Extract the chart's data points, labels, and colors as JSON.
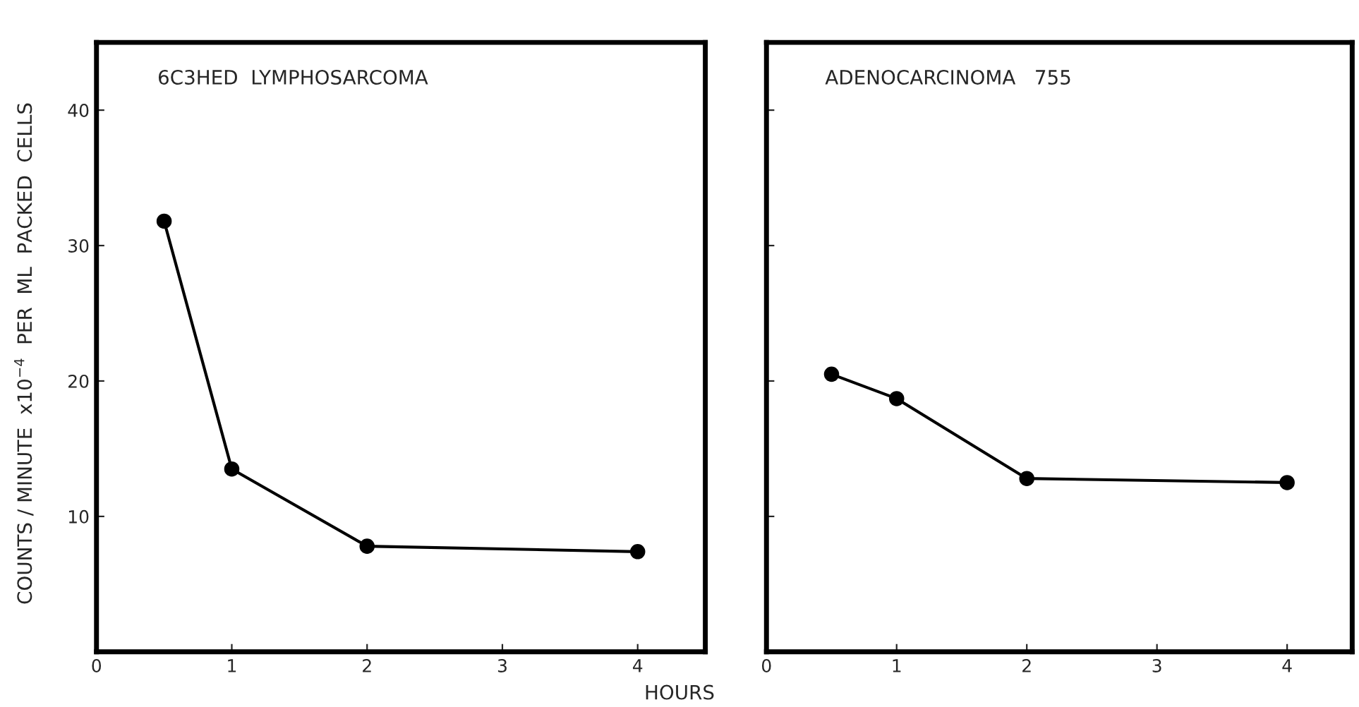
{
  "chart_data": [
    {
      "type": "line",
      "title": "6C3HED  LYMPHOSARCOMA",
      "xlabel": "HOURS",
      "ylabel": "COUNTS / MINUTE  x10$^{−4}$  PER  ML  PACKED  CELLS",
      "x": [
        0.5,
        1,
        2,
        4
      ],
      "series": [
        {
          "color": "#000000",
          "values": [
            31.8,
            13.5,
            7.8,
            7.4
          ]
        }
      ],
      "xlim": [
        0,
        4.5
      ],
      "ylim": [
        0,
        45
      ],
      "xticks": [
        0,
        1,
        2,
        3,
        4
      ],
      "yticks": [
        10,
        20,
        30,
        40
      ],
      "marker": "circle",
      "line_style": "solid",
      "grid": false,
      "legend": false
    },
    {
      "type": "line",
      "title": "ADENOCARCINOMA   755",
      "x": [
        0.5,
        1,
        2,
        4
      ],
      "series": [
        {
          "color": "#000000",
          "values": [
            20.5,
            18.7,
            12.8,
            12.5
          ]
        }
      ],
      "xlim": [
        0,
        4.5
      ],
      "ylim": [
        0,
        45
      ],
      "xticks": [
        0,
        1,
        2,
        3,
        4
      ],
      "yticks": [
        {
          "value": 10,
          "label": null
        },
        {
          "value": 20,
          "label": null
        },
        {
          "value": 30,
          "label": null
        },
        {
          "value": 40,
          "label": null
        }
      ],
      "tick_labels": "x",
      "marker": "circle",
      "line_style": "solid",
      "grid": false,
      "legend": false
    }
  ]
}
